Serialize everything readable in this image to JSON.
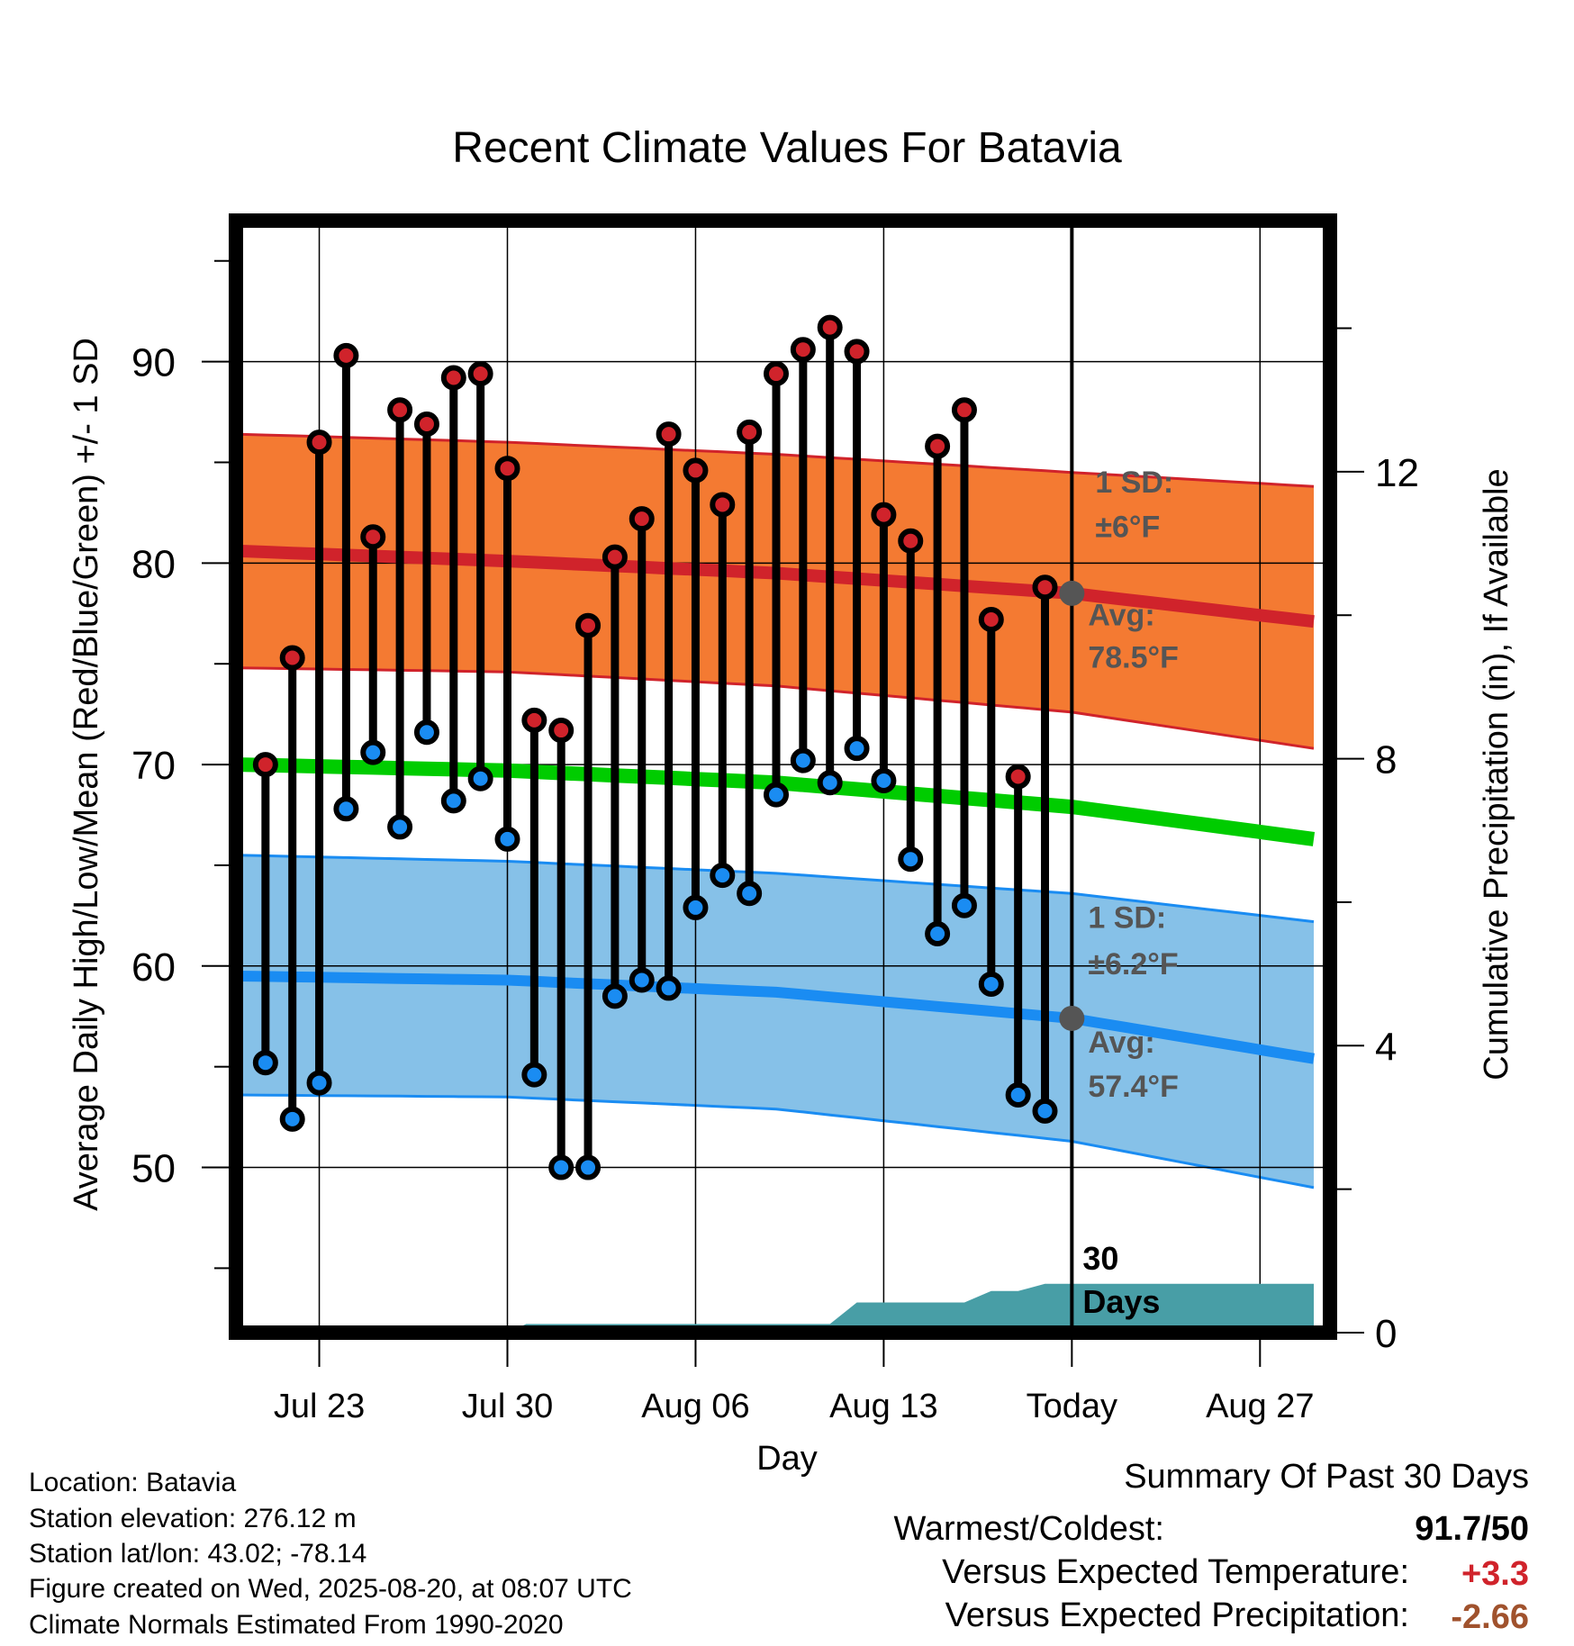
{
  "chart_data": {
    "type": "line",
    "title": "Recent Climate Values For Batavia",
    "xlabel": "Day",
    "ylabel": "Average Daily High/Low/Mean (Red/Blue/Green) +/- 1 SD",
    "y2label": "Cumulative Precipitation (in), If Available",
    "ylim": [
      41.8,
      97
    ],
    "y2lim": [
      0,
      15.5
    ],
    "yticks": [
      50,
      60,
      70,
      80,
      90
    ],
    "y2ticks": [
      0,
      4,
      8,
      12
    ],
    "xticks": [
      "Jul 23",
      "Jul 30",
      "Aug 06",
      "Aug 13",
      "Today",
      "Aug 27"
    ],
    "x_start": "2025-07-20",
    "today_index": 31,
    "grid": true,
    "days": [
      "Jul 21",
      "Jul 22",
      "Jul 23",
      "Jul 24",
      "Jul 25",
      "Jul 26",
      "Jul 27",
      "Jul 28",
      "Jul 29",
      "Jul 30",
      "Jul 31",
      "Aug 01",
      "Aug 02",
      "Aug 03",
      "Aug 04",
      "Aug 05",
      "Aug 06",
      "Aug 07",
      "Aug 08",
      "Aug 09",
      "Aug 10",
      "Aug 11",
      "Aug 12",
      "Aug 13",
      "Aug 14",
      "Aug 15",
      "Aug 16",
      "Aug 17",
      "Aug 18",
      "Aug 19"
    ],
    "highs": [
      70,
      75.3,
      86,
      90.3,
      81.3,
      87.6,
      86.9,
      89.2,
      89.4,
      84.7,
      72.2,
      71.7,
      76.9,
      80.3,
      82.2,
      86.4,
      84.6,
      82.9,
      86.5,
      89.4,
      90.6,
      91.7,
      90.5,
      82.4,
      81.1,
      85.8,
      87.6,
      77.2,
      69.4,
      78.8
    ],
    "lows": [
      55.2,
      52.4,
      54.2,
      67.8,
      70.6,
      66.9,
      71.6,
      68.2,
      69.3,
      66.3,
      54.6,
      50,
      50,
      58.5,
      59.3,
      58.9,
      62.9,
      64.5,
      63.6,
      68.5,
      70.2,
      69.1,
      70.8,
      69.2,
      65.3,
      61.6,
      63,
      59.1,
      53.6,
      52.8
    ],
    "normal_high": {
      "x": [
        0,
        10,
        20,
        31,
        40
      ],
      "values": [
        80.6,
        80.1,
        79.5,
        78.5,
        77.1
      ]
    },
    "normal_high_upper": {
      "x": [
        0,
        10,
        20,
        31,
        40
      ],
      "values": [
        86.4,
        86,
        85.4,
        84.5,
        83.8
      ]
    },
    "normal_high_lower": {
      "x": [
        0,
        10,
        20,
        31,
        40
      ],
      "values": [
        74.8,
        74.6,
        73.9,
        72.6,
        70.8
      ]
    },
    "normal_mean": {
      "x": [
        0,
        10,
        20,
        31,
        40
      ],
      "values": [
        70,
        69.7,
        69.1,
        67.9,
        66.3
      ]
    },
    "normal_low": {
      "x": [
        0,
        10,
        20,
        31,
        40
      ],
      "values": [
        59.5,
        59.3,
        58.7,
        57.4,
        55.4
      ]
    },
    "normal_low_upper": {
      "x": [
        0,
        10,
        20,
        31,
        40
      ],
      "values": [
        65.5,
        65.2,
        64.6,
        63.6,
        62.2
      ]
    },
    "normal_low_lower": {
      "x": [
        0,
        10,
        20,
        31,
        40
      ],
      "values": [
        53.6,
        53.5,
        52.9,
        51.3,
        49
      ]
    },
    "precip_cumulative": {
      "x": [
        10,
        10.7,
        22,
        23,
        27,
        28,
        29,
        30,
        31,
        40
      ],
      "values": [
        0,
        0.12,
        0.12,
        0.42,
        0.42,
        0.58,
        0.58,
        0.68,
        0.68,
        0.68
      ]
    },
    "annotations": {
      "high_sd": "±6°F",
      "high_avg": "78.5°F",
      "low_sd": "±6.2°F",
      "low_avg": "57.4°F",
      "sd_label": "1 SD:",
      "avg_label": "Avg:",
      "days_label": "30 Days"
    },
    "colors": {
      "high_band": "#f47a32",
      "high_line": "#d0232b",
      "low_band": "#86c1e8",
      "low_line": "#1a8cf2",
      "mean_line": "#00cc00",
      "precip": "#489ea6",
      "annotation": "#555555"
    }
  },
  "info": {
    "location": "Location: Batavia",
    "elevation": "Station elevation: 276.12 m",
    "latlon": "Station lat/lon: 43.02; -78.14",
    "created": "Figure created on Wed, 2025-08-20, at 08:07 UTC",
    "normals": "Climate Normals Estimated From 1990-2020"
  },
  "summary": {
    "title": "Summary Of Past 30 Days",
    "warmest_label": "Warmest/Coldest:",
    "warmest_value": "91.7/50",
    "temp_label": "Versus Expected Temperature:",
    "temp_value": "+3.3",
    "temp_color": "#d0232b",
    "precip_label": "Versus Expected Precipitation:",
    "precip_value": "-2.66",
    "precip_color": "#a0522d"
  }
}
